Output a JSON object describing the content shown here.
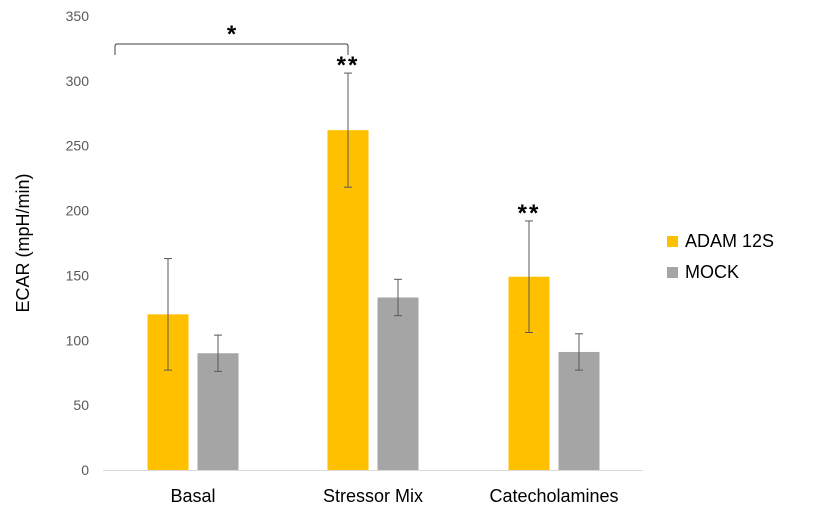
{
  "chart_data": {
    "type": "bar",
    "title": "",
    "xlabel": "",
    "ylabel": "ECAR (mpH/min)",
    "ylim": [
      0,
      350
    ],
    "yticks": [
      0,
      50,
      100,
      150,
      200,
      250,
      300,
      350
    ],
    "grid": false,
    "legend_position": "right",
    "categories": [
      "Basal",
      "Stressor Mix",
      "Catecholamines"
    ],
    "series": [
      {
        "name": "ADAM 12S",
        "color": "#FFC000",
        "values": [
          120,
          262,
          149
        ],
        "errors": [
          43,
          44,
          43
        ]
      },
      {
        "name": "MOCK",
        "color": "#A5A5A5",
        "values": [
          90,
          133,
          91
        ],
        "errors": [
          14,
          14,
          14
        ]
      }
    ],
    "annotations": [
      {
        "text": "*",
        "type": "bracket",
        "from": "Basal ADAM 12S",
        "to": "Stressor Mix ADAM 12S"
      },
      {
        "text": "**",
        "category": "Stressor Mix",
        "series": "ADAM 12S"
      },
      {
        "text": "**",
        "category": "Catecholamines",
        "series": "ADAM 12S"
      }
    ]
  }
}
